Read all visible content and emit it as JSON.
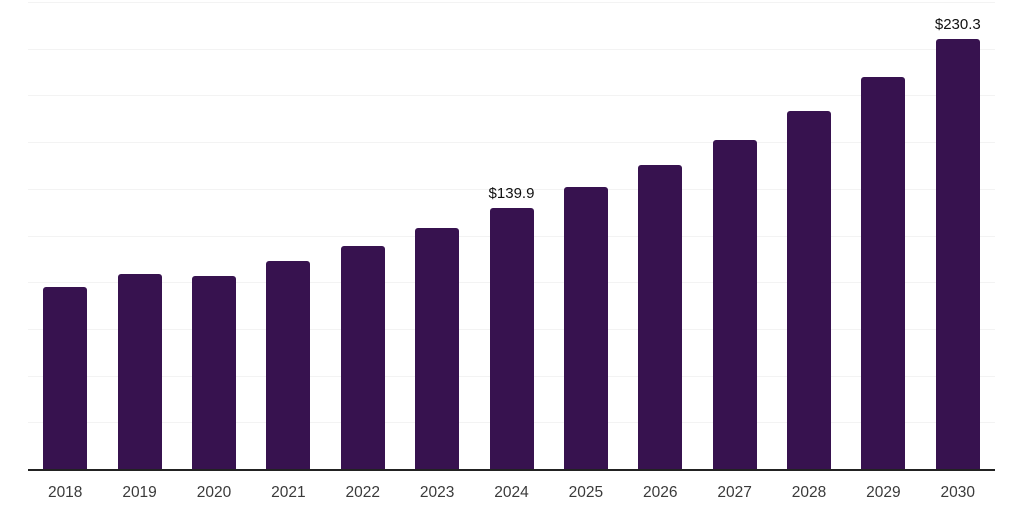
{
  "chart_data": {
    "type": "bar",
    "categories": [
      "2018",
      "2019",
      "2020",
      "2021",
      "2022",
      "2023",
      "2024",
      "2025",
      "2026",
      "2027",
      "2028",
      "2029",
      "2030"
    ],
    "values": [
      97.2,
      104.5,
      103.1,
      111.1,
      119.2,
      129.0,
      139.9,
      150.8,
      162.8,
      176.2,
      191.8,
      209.6,
      230.3
    ],
    "point_labels": [
      "",
      "",
      "",
      "",
      "",
      "",
      "$139.9",
      "",
      "",
      "",
      "",
      "",
      "$230.3"
    ],
    "title": "",
    "xlabel": "",
    "ylabel": "",
    "ylim": [
      0,
      250
    ],
    "gridline_step": 25,
    "grid": true,
    "legend": "none",
    "y_axis_tick_labels_visible": false,
    "colors": {
      "bar": "#37124F",
      "axis": "#222222",
      "gridline": "#f3f3f3",
      "tick_label": "#3a3a3a",
      "value_label": "#111111",
      "background": "#ffffff"
    }
  }
}
